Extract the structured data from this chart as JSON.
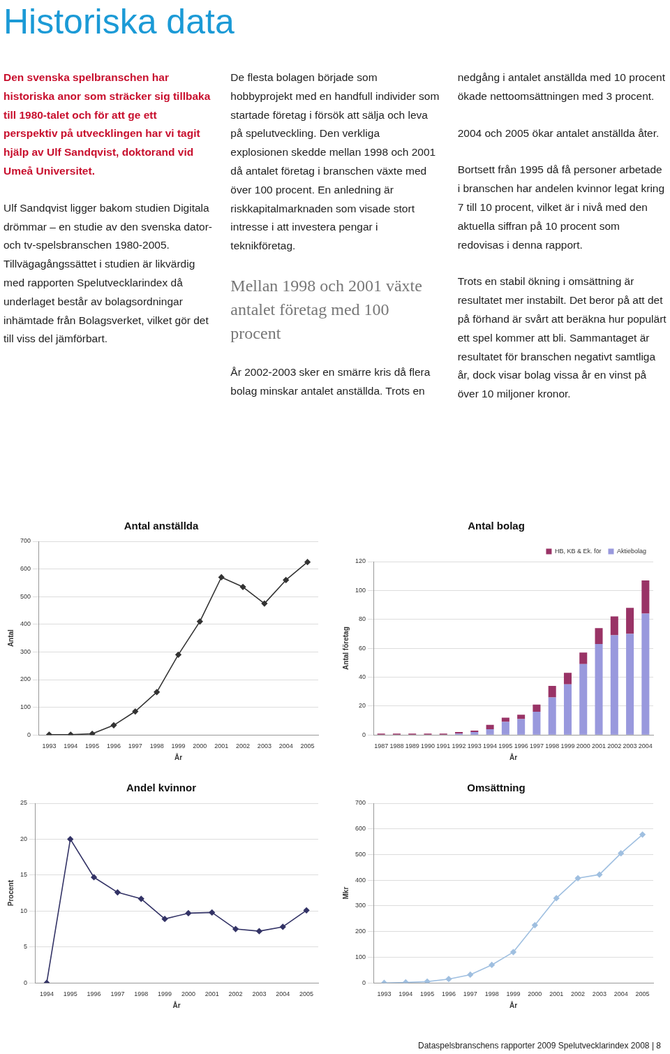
{
  "chart_data": [
    {
      "type": "other",
      "title": "Historiska data",
      "subtitle": "Den svenska spelbranschen har historiska anor som sträcker sig tillbaka till 1980-talet och för att ge ett perspektiv på utvecklingen har vi tagit hjälp av Ulf Sandqvist, doktorand vid Umeå Universitet.",
      "annotations": [
        "Ulf Sandqvist ligger bakom studien Digitala drömmar – en studie av den svenska dator- och tv-spelsbranschen 1980-2005. Tillvägagångssättet i studien är likvärdig med rapporten Spelutvecklarindex då underlaget består av bolagsordningar inhämtade från Bolagsverket, vilket gör det till viss del jämförbart.",
        "De flesta bolagen började som hobbyprojekt med en handfull individer som startade företag i försök att sälja och leva på spelutveckling. Den verkliga explosionen skedde mellan 1998 och 2001 då antalet företag i branschen växte med över 100 procent. En anledning är riskkapitalmarknaden som visade stort intresse i att investera pengar i teknikföretag.",
        "År 2002-2003 sker en smärre kris då flera bolag minskar antalet anställda. Trots en nedgång i antalet anställda med 10 procent ökade nettoomsättningen med 3 procent.",
        "2004 och 2005 ökar antalet anställda åter.",
        "Bortsett från 1995 då få personer arbetade i branschen har andelen kvinnor legat kring 7 till 10 procent, vilket är i nivå med den aktuella siffran på 10 procent som redovisas i denna rapport.",
        "Trots en stabil ökning i omsättning är resultatet mer instabilt. Det beror på att det på förhand är svårt att beräkna hur populärt ett spel kommer att bli. Sammantaget är resultatet för branschen negativt samtliga år, dock visar bolag vissa år en vinst på över 10 miljoner kronor.",
        "Mellan 1998 och 2001 växte antalet företag med 100 procent",
        "Dataspelsbranschens rapporter 2009 Spelutvecklarindex 2008 | 8"
      ]
    },
    {
      "type": "line",
      "title": "Antal anställda",
      "xlabel": "År",
      "ylabel": "Antal",
      "categories": [
        "1993",
        "1994",
        "1995",
        "1996",
        "1997",
        "1998",
        "1999",
        "2000",
        "2001",
        "2002",
        "2003",
        "2004",
        "2005"
      ],
      "ylim": [
        0,
        700
      ],
      "yticks": [
        0,
        100,
        200,
        300,
        400,
        500,
        600,
        700
      ],
      "grid": "y",
      "marker": "diamond",
      "series": [
        {
          "color": "#333333",
          "values": [
            1,
            1,
            4,
            35,
            85,
            155,
            290,
            410,
            570,
            535,
            475,
            560,
            625
          ]
        }
      ]
    },
    {
      "type": "bar",
      "title": "Antal bolag",
      "xlabel": "År",
      "ylabel": "Antal företag",
      "stacked": true,
      "legend": "top right",
      "categories": [
        "1987",
        "1988",
        "1989",
        "1990",
        "1991",
        "1992",
        "1993",
        "1994",
        "1995",
        "1996",
        "1997",
        "1998",
        "1999",
        "2000",
        "2001",
        "2002",
        "2003",
        "2004"
      ],
      "ylim": [
        0,
        120
      ],
      "yticks": [
        0,
        20,
        40,
        60,
        80,
        100,
        120
      ],
      "grid": "y",
      "series": [
        {
          "name": "Aktiebolag",
          "color": "#9999dd",
          "values": [
            0,
            0,
            0,
            0,
            0,
            1,
            2,
            4,
            9,
            11,
            16,
            26,
            35,
            49,
            63,
            69,
            70,
            84
          ]
        },
        {
          "name": "HB, KB & Ek. för",
          "color": "#993366",
          "values": [
            1,
            1,
            1,
            1,
            1,
            1,
            1,
            3,
            3,
            3,
            5,
            8,
            8,
            8,
            11,
            13,
            18,
            23
          ]
        }
      ]
    },
    {
      "type": "line",
      "title": "Andel kvinnor",
      "xlabel": "År",
      "ylabel": "Procent",
      "categories": [
        "1994",
        "1995",
        "1996",
        "1997",
        "1998",
        "1999",
        "2000",
        "2001",
        "2002",
        "2003",
        "2004",
        "2005"
      ],
      "ylim": [
        0,
        25
      ],
      "yticks": [
        0,
        5,
        10,
        15,
        20,
        25
      ],
      "grid": "y",
      "marker": "diamond",
      "series": [
        {
          "color": "#333366",
          "values": [
            0,
            20,
            14.7,
            12.6,
            11.7,
            8.9,
            9.7,
            9.8,
            7.5,
            7.2,
            7.8,
            10.1
          ]
        }
      ]
    },
    {
      "type": "line",
      "title": "Omsättning",
      "xlabel": "År",
      "ylabel": "Mkr",
      "categories": [
        "1993",
        "1994",
        "1995",
        "1996",
        "1997",
        "1998",
        "1999",
        "2000",
        "2001",
        "2002",
        "2003",
        "2004",
        "2005"
      ],
      "ylim": [
        0,
        700
      ],
      "yticks": [
        0,
        100,
        200,
        300,
        400,
        500,
        600,
        700
      ],
      "grid": "y",
      "marker": "diamond",
      "series": [
        {
          "color": "#9fbfe0",
          "values": [
            0,
            2,
            5,
            15,
            32,
            70,
            120,
            225,
            330,
            408,
            422,
            505,
            578
          ]
        }
      ]
    }
  ]
}
